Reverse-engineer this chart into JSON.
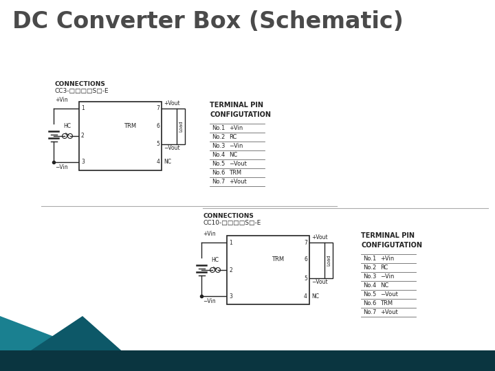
{
  "title": "DC Converter Box (Schematic)",
  "title_fontsize": 24,
  "title_color": "#4a4a4a",
  "bg_color": "#ffffff",
  "terminal_pin_rows": [
    [
      "No.1",
      "+Vin"
    ],
    [
      "No.2",
      "RC"
    ],
    [
      "No.3",
      "−Vin"
    ],
    [
      "No.4",
      "NC"
    ],
    [
      "No.5",
      "−Vout"
    ],
    [
      "No.6",
      "TRM"
    ],
    [
      "No.7",
      "+Vout"
    ]
  ]
}
